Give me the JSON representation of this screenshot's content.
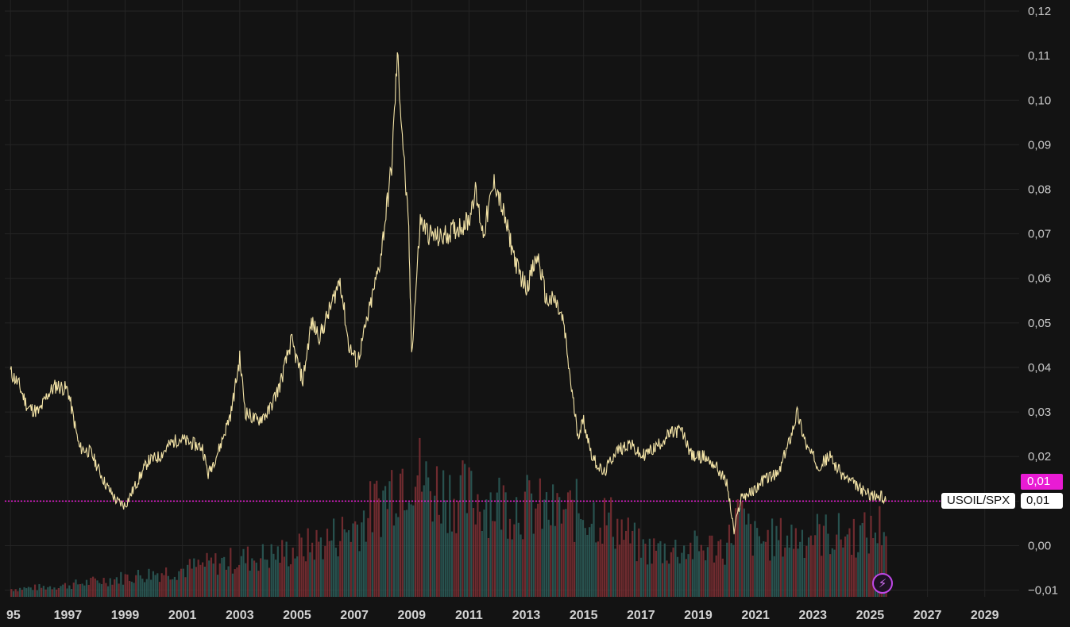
{
  "chart_data": {
    "type": "line",
    "symbol": "USOIL/SPX",
    "last_value_label": "0,01",
    "ohlc_tag": "0,01",
    "y_ticks": [
      "0,12",
      "0,11",
      "0,10",
      "0,09",
      "0,08",
      "0,07",
      "0,06",
      "0,05",
      "0,04",
      "0,03",
      "0,02",
      "0,01",
      "0,00",
      "−0,01"
    ],
    "y_tick_values": [
      0.12,
      0.11,
      0.1,
      0.09,
      0.08,
      0.07,
      0.06,
      0.05,
      0.04,
      0.03,
      0.02,
      0.01,
      0.0,
      -0.01
    ],
    "x_ticks": [
      "95",
      "1997",
      "1999",
      "2001",
      "2003",
      "2005",
      "2007",
      "2009",
      "2011",
      "2013",
      "2015",
      "2017",
      "2019",
      "2021",
      "2023",
      "2025",
      "2027",
      "2029"
    ],
    "x_tick_years": [
      1995,
      1997,
      1999,
      2001,
      2003,
      2005,
      2007,
      2009,
      2011,
      2013,
      2015,
      2017,
      2019,
      2021,
      2023,
      2025,
      2027,
      2029
    ],
    "ylim": [
      -0.0115,
      0.1225
    ],
    "xlim": [
      1994.8,
      2030.2
    ],
    "line_color": "#f3e3a6",
    "price_line_color": "#e91bd4",
    "series": [
      {
        "x": [
          1995.0,
          1995.3,
          1995.6,
          1996.0,
          1996.3,
          1996.6,
          1997.0,
          1997.4,
          1997.8,
          1998.3,
          1998.7,
          1999.0,
          1999.4,
          1999.8,
          2000.2,
          2000.6,
          2000.9,
          2001.3,
          2001.7,
          2001.9,
          2002.3,
          2002.7,
          2003.0,
          2003.2,
          2003.6,
          2004.0,
          2004.4,
          2004.8,
          2005.2,
          2005.5,
          2005.8,
          2006.2,
          2006.5,
          2006.8,
          2007.1,
          2007.5,
          2007.9,
          2008.3,
          2008.5,
          2008.7,
          2008.9,
          2009.0,
          2009.3,
          2009.6,
          2010.0,
          2010.5,
          2011.0,
          2011.2,
          2011.5,
          2011.9,
          2012.3,
          2012.7,
          2013.0,
          2013.4,
          2013.7,
          2014.0,
          2014.3,
          2014.6,
          2014.8,
          2015.0,
          2015.3,
          2015.7,
          2016.1,
          2016.6,
          2017.0,
          2017.5,
          2018.0,
          2018.4,
          2018.8,
          2019.2,
          2019.6,
          2020.0,
          2020.25,
          2020.5,
          2020.9,
          2021.3,
          2021.8,
          2022.2,
          2022.45,
          2022.8,
          2023.2,
          2023.6,
          2024.0,
          2024.4,
          2024.8,
          2025.2,
          2025.4,
          2025.55
        ],
        "y": [
          0.039,
          0.036,
          0.031,
          0.03,
          0.034,
          0.036,
          0.035,
          0.022,
          0.021,
          0.014,
          0.01,
          0.009,
          0.014,
          0.019,
          0.02,
          0.023,
          0.024,
          0.023,
          0.022,
          0.016,
          0.022,
          0.03,
          0.042,
          0.03,
          0.028,
          0.03,
          0.036,
          0.046,
          0.037,
          0.05,
          0.047,
          0.054,
          0.06,
          0.045,
          0.041,
          0.052,
          0.064,
          0.085,
          0.11,
          0.09,
          0.07,
          0.043,
          0.073,
          0.07,
          0.069,
          0.071,
          0.073,
          0.08,
          0.07,
          0.082,
          0.072,
          0.062,
          0.058,
          0.065,
          0.055,
          0.055,
          0.05,
          0.034,
          0.025,
          0.028,
          0.02,
          0.016,
          0.021,
          0.023,
          0.02,
          0.022,
          0.025,
          0.026,
          0.02,
          0.02,
          0.018,
          0.014,
          0.003,
          0.011,
          0.012,
          0.015,
          0.016,
          0.024,
          0.03,
          0.022,
          0.018,
          0.02,
          0.016,
          0.014,
          0.012,
          0.011,
          0.011,
          0.01
        ]
      }
    ],
    "volume": {
      "x": [
        1995,
        1996,
        1997,
        1998,
        1999,
        2000,
        2001,
        2002,
        2003,
        2004,
        2005,
        2006,
        2007,
        2008,
        2008.5,
        2009,
        2009.5,
        2010,
        2011,
        2012,
        2013,
        2014,
        2015,
        2016,
        2017,
        2018,
        2019,
        2020,
        2020.3,
        2021,
        2022,
        2023,
        2024,
        2025,
        2025.5
      ],
      "y": [
        0.1,
        0.12,
        0.15,
        0.2,
        0.25,
        0.3,
        0.35,
        0.42,
        0.48,
        0.52,
        0.6,
        0.72,
        0.9,
        1.25,
        1.55,
        1.7,
        1.4,
        1.35,
        1.25,
        1.2,
        1.15,
        1.05,
        1.1,
        0.95,
        0.6,
        0.6,
        0.62,
        0.65,
        1.05,
        0.7,
        0.75,
        0.8,
        0.78,
        0.8,
        0.95
      ]
    }
  }
}
